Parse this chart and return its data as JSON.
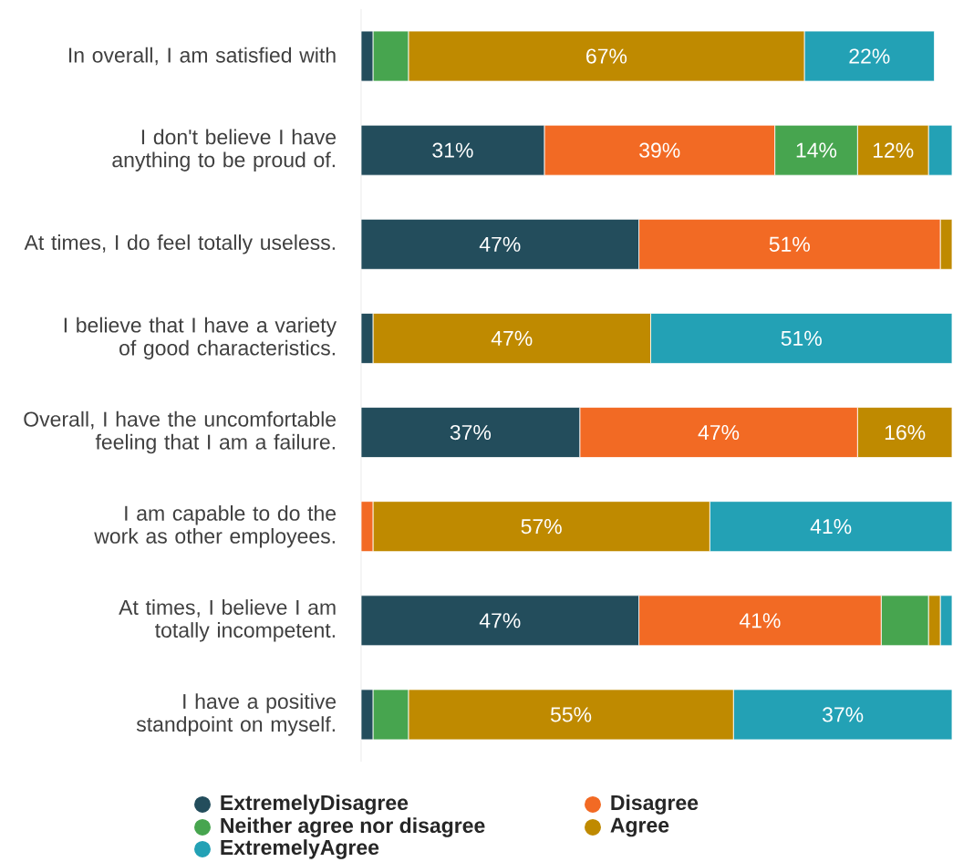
{
  "chart_data": {
    "type": "bar",
    "orientation": "horizontal",
    "stacked": true,
    "categories": [
      "In overall, I am satisfied with",
      "I don't believe I have anything to be proud of.",
      "At times, I do feel totally useless.",
      "I believe that I have a variety of good characteristics.",
      "Overall, I have the uncomfortable feeling that I am a failure.",
      "I am capable to do the work as other employees.",
      "At times, I believe I am totally incompetent.",
      "I have a positive standpoint on myself."
    ],
    "series": [
      {
        "name": "ExtremelyDisagree",
        "color": "#234d5c",
        "values": [
          2,
          31,
          47,
          2,
          37,
          0,
          47,
          2
        ],
        "value_labels": [
          null,
          "31%",
          "47%",
          null,
          "37%",
          null,
          "47%",
          null
        ]
      },
      {
        "name": "Disagree",
        "color": "#f26a24",
        "values": [
          0,
          39,
          51,
          0,
          47,
          2,
          41,
          0
        ],
        "value_labels": [
          null,
          "39%",
          "51%",
          null,
          "47%",
          null,
          "41%",
          null
        ]
      },
      {
        "name": "Neither agree nor disagree",
        "color": "#47a54f",
        "values": [
          6,
          14,
          0,
          0,
          0,
          0,
          8,
          6
        ],
        "value_labels": [
          null,
          "14%",
          null,
          null,
          null,
          null,
          null,
          null
        ]
      },
      {
        "name": "Agree",
        "color": "#bf8a00",
        "values": [
          67,
          12,
          2,
          47,
          16,
          57,
          2,
          55
        ],
        "value_labels": [
          "67%",
          "12%",
          null,
          "47%",
          "16%",
          "57%",
          null,
          "55%"
        ]
      },
      {
        "name": "ExtremelyAgree",
        "color": "#23a1b5",
        "values": [
          22,
          4,
          0,
          51,
          0,
          41,
          2,
          37
        ],
        "value_labels": [
          "22%",
          null,
          null,
          "51%",
          null,
          "41%",
          null,
          "37%"
        ]
      }
    ],
    "tick_labels": "y",
    "legend": "bottom",
    "marker": "circle"
  }
}
